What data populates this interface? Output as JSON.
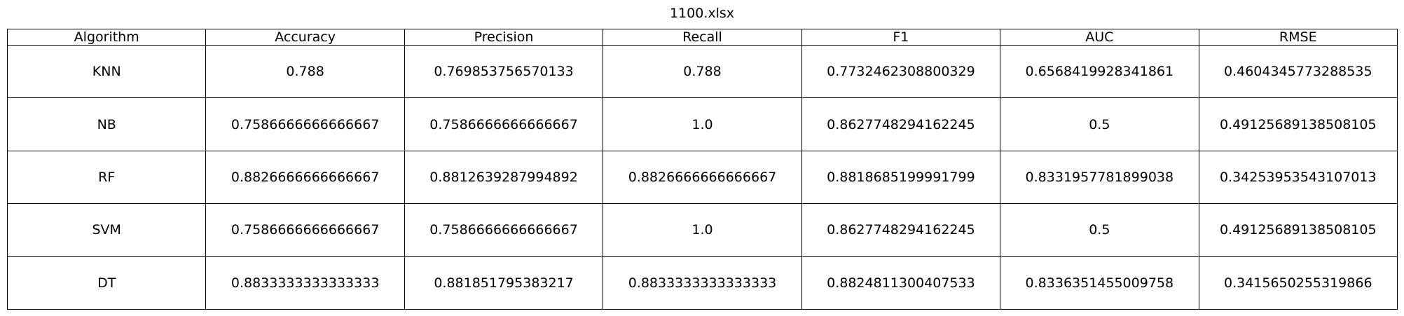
{
  "chart_data": {
    "type": "table",
    "title": "1100.xlsx",
    "columns": [
      "Algorithm",
      "Accuracy",
      "Precision",
      "Recall",
      "F1",
      "AUC",
      "RMSE"
    ],
    "rows": [
      [
        "KNN",
        "0.788",
        "0.769853756570133",
        "0.788",
        "0.7732462308800329",
        "0.6568419928341861",
        "0.4604345773288535"
      ],
      [
        "NB",
        "0.7586666666666667",
        "0.7586666666666667",
        "1.0",
        "0.8627748294162245",
        "0.5",
        "0.49125689138508105"
      ],
      [
        "RF",
        "0.8826666666666667",
        "0.8812639287994892",
        "0.8826666666666667",
        "0.8818685199991799",
        "0.8331957781899038",
        "0.34253953543107013"
      ],
      [
        "SVM",
        "0.7586666666666667",
        "0.7586666666666667",
        "1.0",
        "0.8627748294162245",
        "0.5",
        "0.49125689138508105"
      ],
      [
        "DT",
        "0.8833333333333333",
        "0.881851795383217",
        "0.8833333333333333",
        "0.8824811300407533",
        "0.8336351455009758",
        "0.3415650255319866"
      ]
    ]
  }
}
